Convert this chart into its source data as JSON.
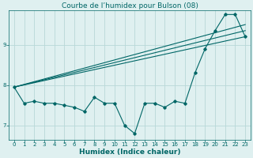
{
  "title": "Courbe de l’humidex pour Bulson (08)",
  "xlabel": "Humidex (Indice chaleur)",
  "background_color": "#dff0f0",
  "grid_color": "#b8d8d8",
  "line_color": "#006666",
  "xlim": [
    -0.5,
    23.5
  ],
  "ylim": [
    6.65,
    9.85
  ],
  "yticks": [
    7,
    8,
    9
  ],
  "xticks": [
    0,
    1,
    2,
    3,
    4,
    5,
    6,
    7,
    8,
    9,
    10,
    11,
    12,
    13,
    14,
    15,
    16,
    17,
    18,
    19,
    20,
    21,
    22,
    23
  ],
  "main_x": [
    0,
    1,
    2,
    3,
    4,
    5,
    6,
    7,
    8,
    9,
    10,
    11,
    12,
    13,
    14,
    15,
    16,
    17,
    18,
    19,
    20,
    21,
    22,
    23
  ],
  "main_y": [
    7.95,
    7.55,
    7.6,
    7.55,
    7.55,
    7.5,
    7.45,
    7.35,
    7.7,
    7.55,
    7.55,
    7.0,
    6.8,
    7.55,
    7.55,
    7.45,
    7.6,
    7.55,
    8.3,
    8.9,
    9.35,
    9.75,
    9.75,
    9.2
  ],
  "line1_x": [
    0,
    23
  ],
  "line1_y": [
    7.95,
    9.2
  ],
  "line2_x": [
    0,
    23
  ],
  "line2_y": [
    7.95,
    9.35
  ],
  "line3_x": [
    0,
    23
  ],
  "line3_y": [
    7.95,
    9.5
  ],
  "title_fontsize": 6.5,
  "xlabel_fontsize": 6.5,
  "tick_fontsize": 5.0
}
